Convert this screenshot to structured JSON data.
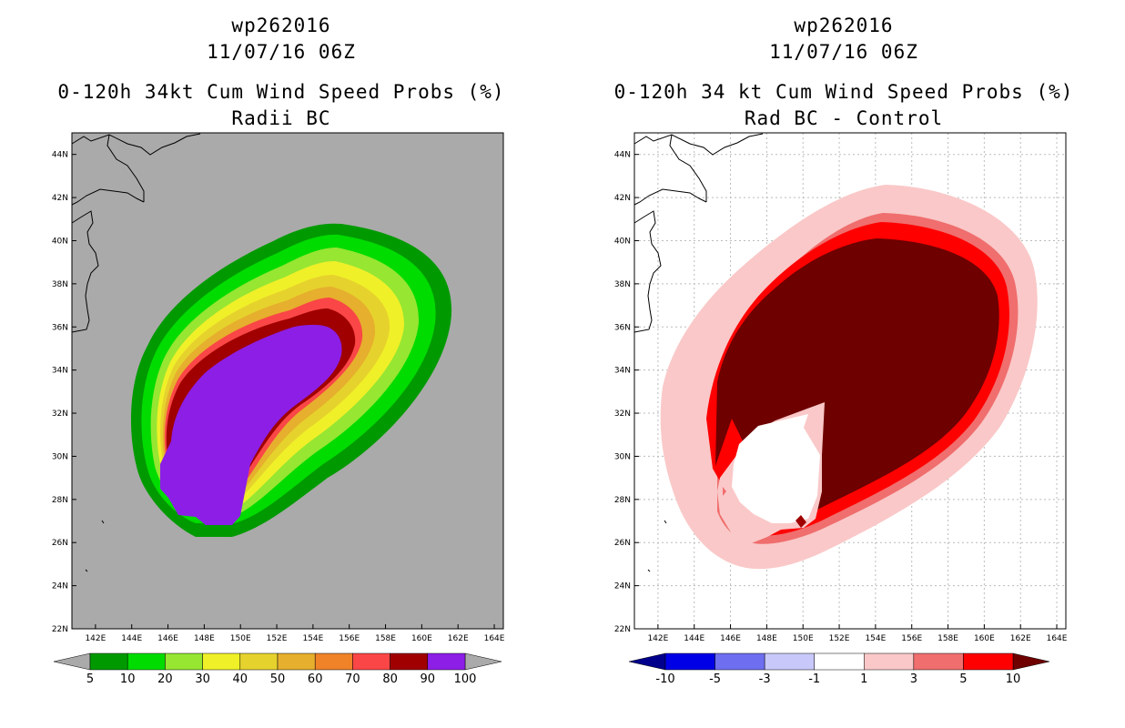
{
  "panels": [
    {
      "storm_id": "wp262016",
      "datetime": "11/07/16 06Z",
      "product": "0-120h 34kt Cum Wind Speed Probs (%)",
      "subtitle": "Radii BC",
      "colorbar_labels": [
        "5",
        "10",
        "20",
        "30",
        "40",
        "50",
        "60",
        "70",
        "80",
        "90",
        "100"
      ],
      "colors": [
        "#009a00",
        "#00dc00",
        "#96e632",
        "#f0f028",
        "#e6d22d",
        "#e6af2d",
        "#f08228",
        "#fa4646",
        "#a00000",
        "#8c1ee6"
      ],
      "below_color": "#aaaaaa",
      "above_color": "#aaaaaa",
      "background": "#aaaaaa"
    },
    {
      "storm_id": "wp262016",
      "datetime": "11/07/16 06Z",
      "product": "0-120h 34 kt Cum Wind Speed Probs (%)",
      "subtitle": "Rad BC - Control",
      "colorbar_labels": [
        "-10",
        "-5",
        "-3",
        "-1",
        "1",
        "3",
        "5",
        "10"
      ],
      "colors": [
        "#0000e6",
        "#6e6ef0",
        "#c8c8fa",
        "#ffffff",
        "#fac8c8",
        "#f06e6e",
        "#ff0000"
      ],
      "below_color": "#00008c",
      "above_color": "#6e0000",
      "background": "#ffffff"
    }
  ],
  "map": {
    "lat_labels": [
      "44N",
      "42N",
      "40N",
      "38N",
      "36N",
      "34N",
      "32N",
      "30N",
      "28N",
      "26N",
      "24N",
      "22N"
    ],
    "lon_labels": [
      "142E",
      "144E",
      "146E",
      "148E",
      "150E",
      "152E",
      "154E",
      "156E",
      "158E",
      "160E",
      "162E",
      "164E"
    ]
  }
}
